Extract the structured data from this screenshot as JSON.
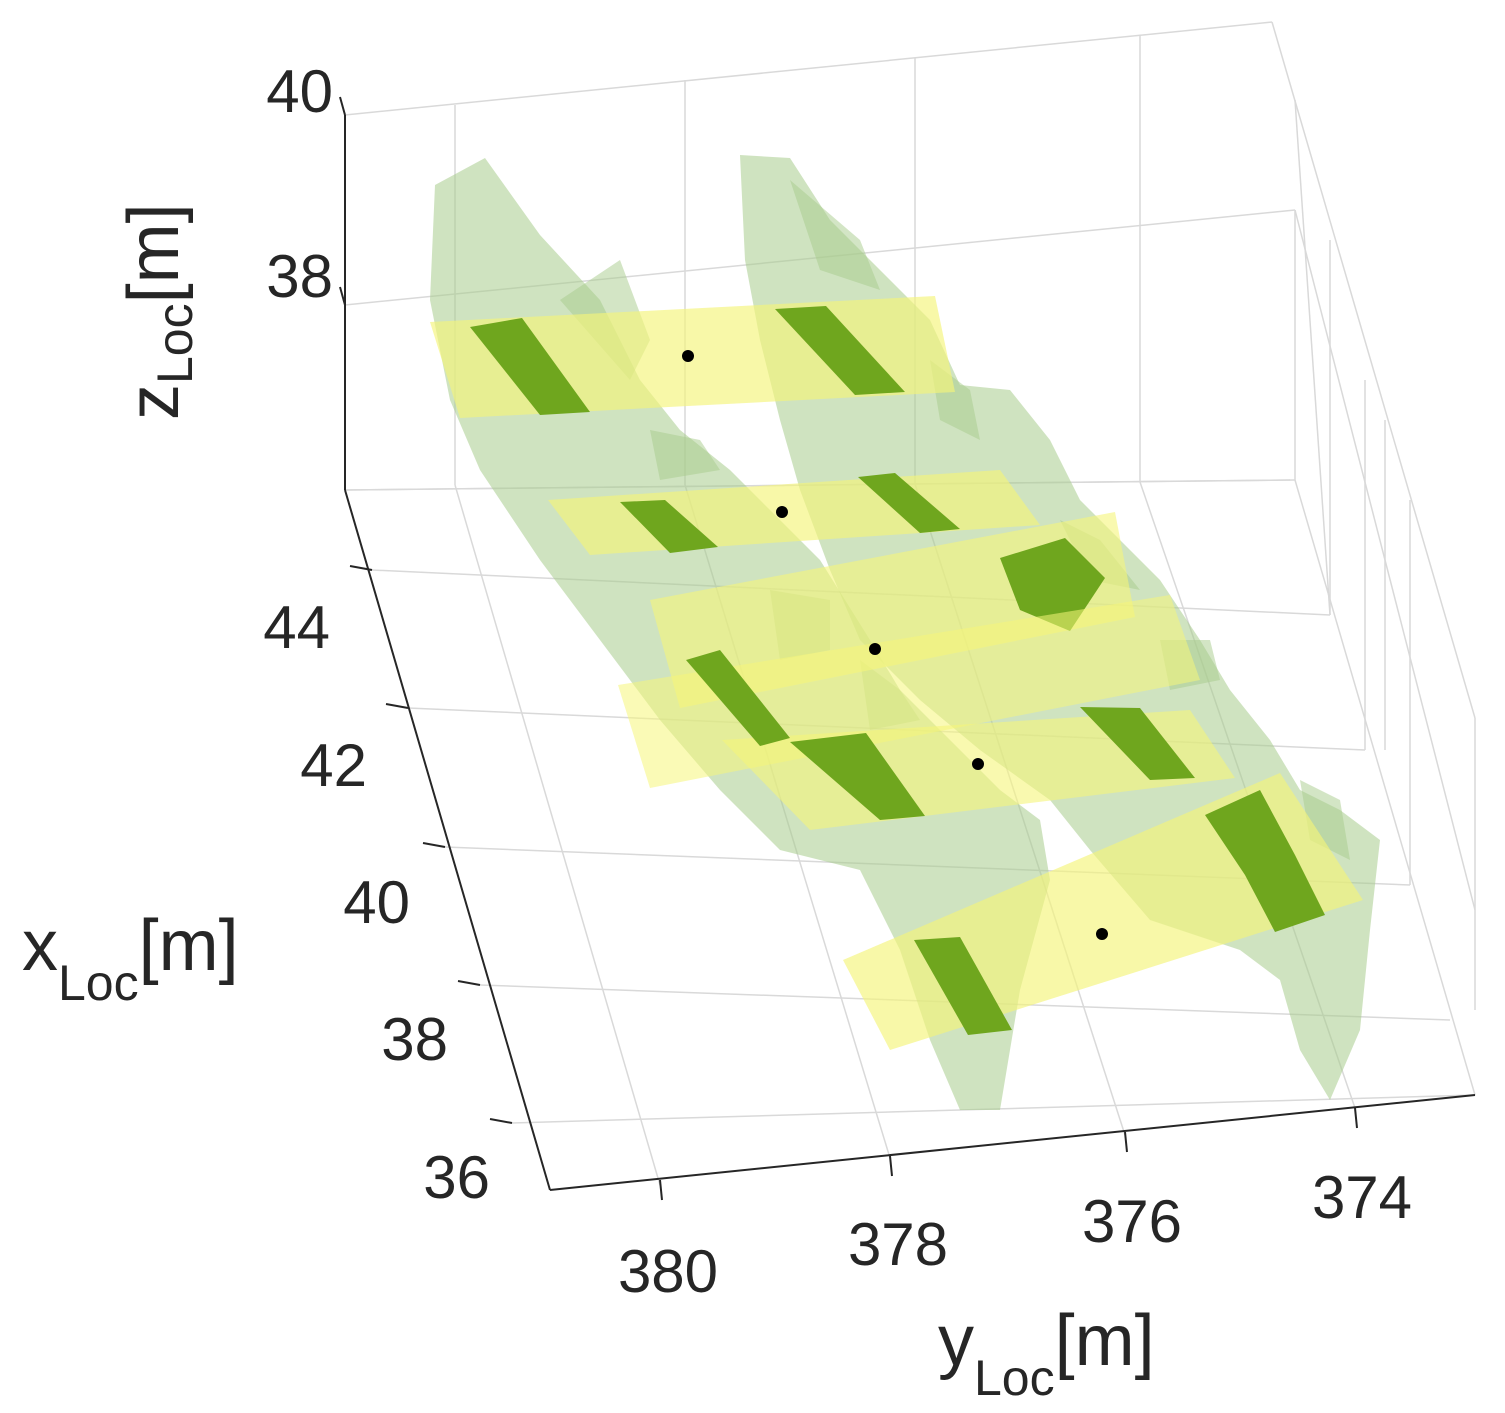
{
  "chart_data": {
    "type": "3d-surface",
    "axes": {
      "x": {
        "label_main": "x",
        "label_sub": "Loc",
        "label_unit": "[m]",
        "ticks": [
          "36",
          "38",
          "40",
          "42",
          "44"
        ]
      },
      "y": {
        "label_main": "y",
        "label_sub": "Loc",
        "label_unit": "[m]",
        "ticks": [
          "380",
          "378",
          "376",
          "374"
        ]
      },
      "z": {
        "label_main": "z",
        "label_sub": "Loc",
        "label_unit": "[m]",
        "ticks": [
          "38",
          "40"
        ]
      }
    },
    "grid": true,
    "colors": {
      "hull": "#a8cc8c",
      "slice_plane": "#f5f57a",
      "cross_section": "#6fa61e",
      "cross_section_light": "#8dbb2a",
      "marker": "#000000",
      "grid": "#d9d9d9",
      "axis": "#262626"
    },
    "hulls": [
      {
        "id": "left-row"
      },
      {
        "id": "right-row"
      }
    ],
    "slices": [
      {
        "id": "slice-1"
      },
      {
        "id": "slice-2"
      },
      {
        "id": "slice-3"
      },
      {
        "id": "slice-4"
      },
      {
        "id": "slice-5"
      }
    ]
  }
}
